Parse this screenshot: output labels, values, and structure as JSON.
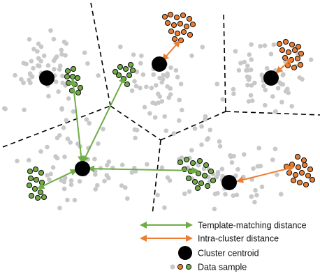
{
  "legend": {
    "template_matching": "Template-matching distance",
    "intra_cluster": "Intra-cluster distance",
    "centroid": "Cluster centroid",
    "sample": "Data sample"
  },
  "colors": {
    "background": "#ffffff",
    "grey_sample": "#c8c8c8",
    "green": "#6fac46",
    "orange": "#ed7d31",
    "centroid": "#000000",
    "boundary": "#000000"
  },
  "icons": {
    "centroid": "black-circle-icon",
    "sample_grey": "grey-dot-icon",
    "sample_green": "green-ring-dot-icon",
    "sample_orange": "orange-ring-dot-icon",
    "arrow": "double-headed-arrow-icon"
  }
}
